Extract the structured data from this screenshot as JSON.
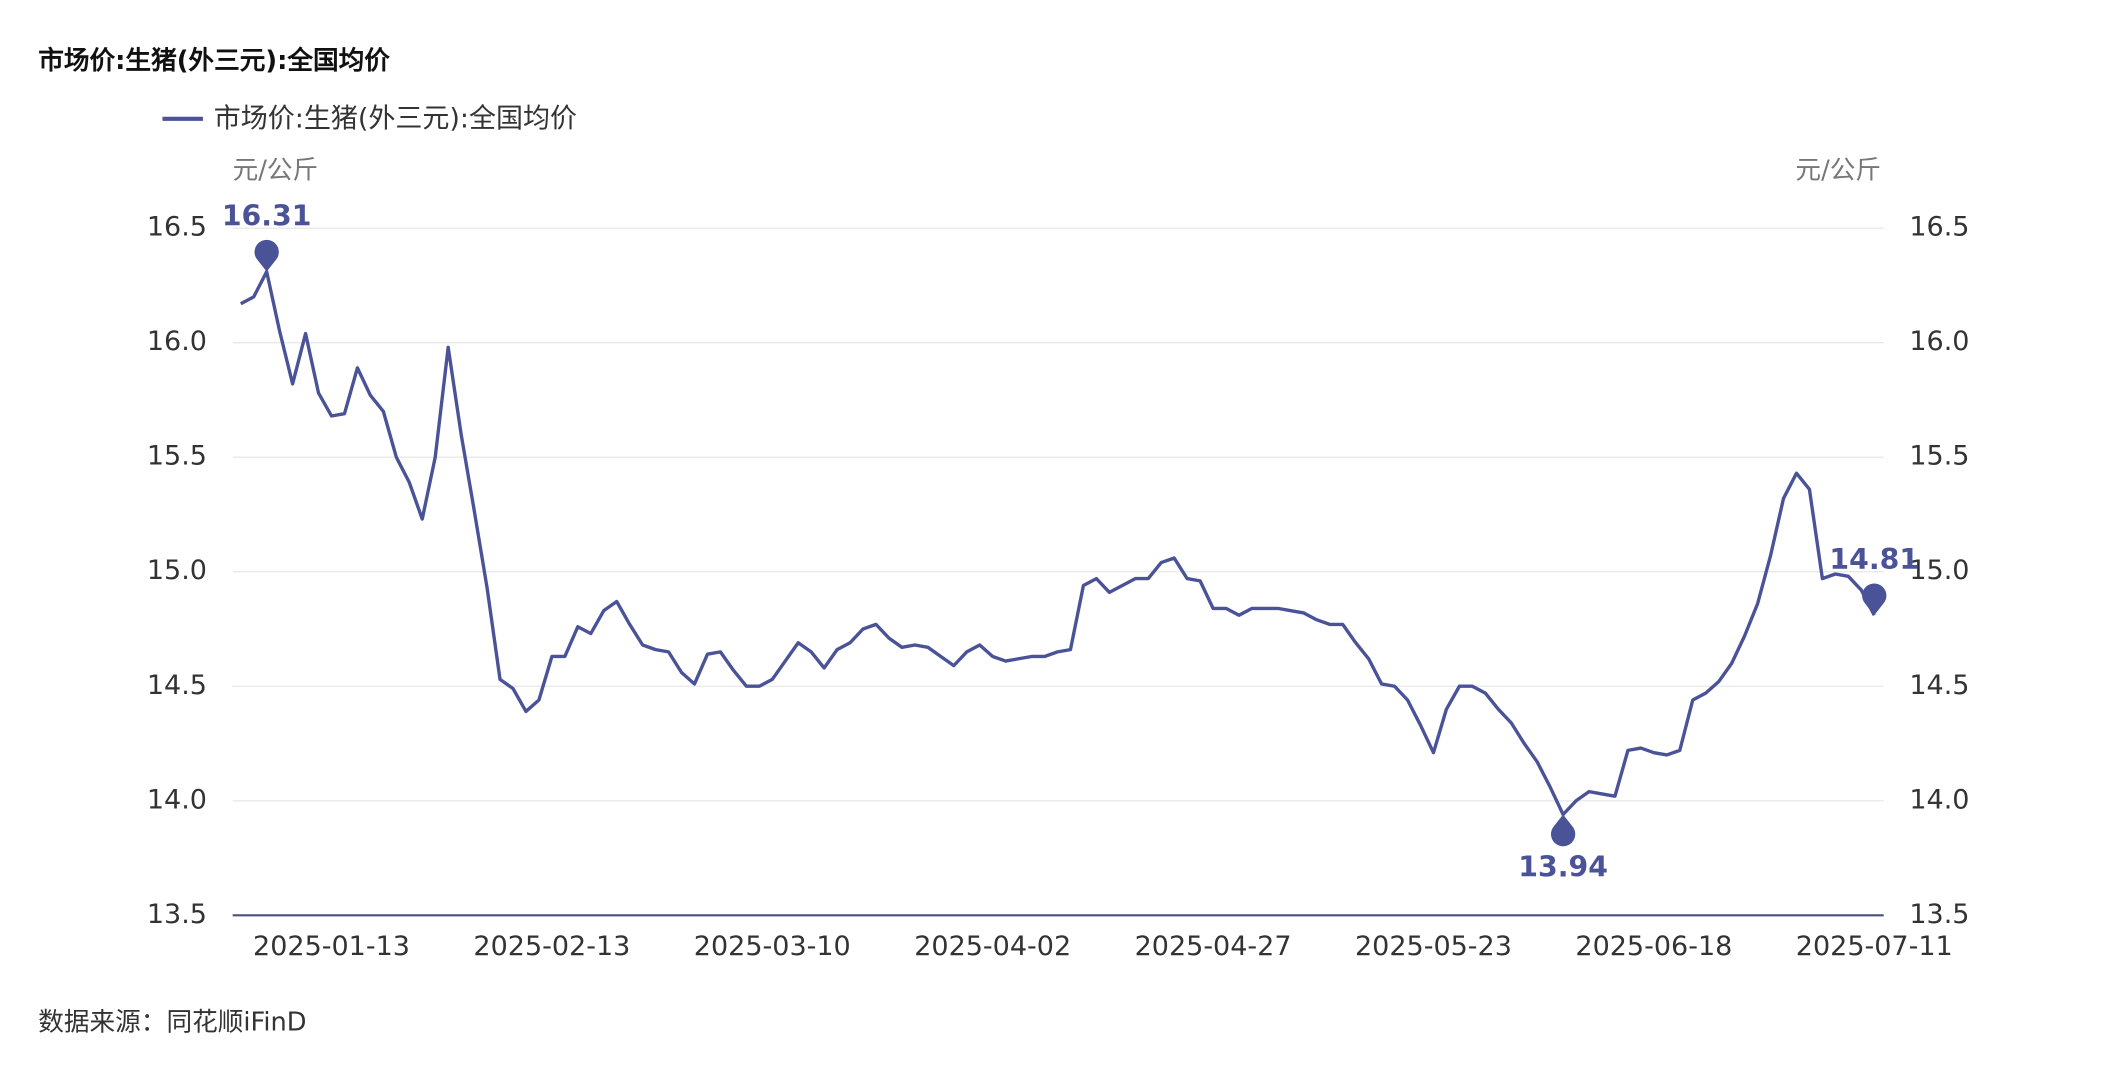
{
  "chart_data": {
    "type": "line",
    "title": "市场价:生猪(外三元):全国均价",
    "source": "数据来源：同花顺iFinD",
    "y_unit": "元/公斤",
    "y2_unit": "元/公斤",
    "categories": [
      null,
      null,
      null,
      null,
      null,
      null,
      null,
      "2025-01-13",
      null,
      null,
      null,
      null,
      null,
      null,
      null,
      null,
      null,
      null,
      null,
      null,
      null,
      null,
      null,
      null,
      "2025-02-13",
      null,
      null,
      null,
      null,
      null,
      null,
      null,
      null,
      null,
      null,
      null,
      null,
      null,
      null,
      null,
      null,
      "2025-03-10",
      null,
      null,
      null,
      null,
      null,
      null,
      null,
      null,
      null,
      null,
      null,
      null,
      null,
      null,
      null,
      null,
      "2025-04-02",
      null,
      null,
      null,
      null,
      null,
      null,
      null,
      null,
      null,
      null,
      null,
      null,
      null,
      null,
      null,
      null,
      "2025-04-27",
      null,
      null,
      null,
      null,
      null,
      null,
      null,
      null,
      null,
      null,
      null,
      null,
      null,
      null,
      null,
      null,
      "2025-05-23",
      null,
      null,
      null,
      null,
      null,
      null,
      null,
      null,
      null,
      null,
      null,
      null,
      null,
      null,
      null,
      null,
      "2025-06-18",
      null,
      null,
      null,
      null,
      null,
      null,
      null,
      null,
      null,
      null,
      null,
      null,
      null,
      null,
      null,
      null,
      "2025-07-11"
    ],
    "series": [
      {
        "name": "市场价:生猪(外三元):全国均价",
        "color": "#4a5298",
        "values": [
          16.17,
          16.2,
          16.31,
          16.05,
          15.82,
          16.04,
          15.78,
          15.68,
          15.69,
          15.89,
          15.77,
          15.7,
          15.5,
          15.39,
          15.23,
          15.5,
          15.98,
          15.6,
          15.27,
          14.93,
          14.53,
          14.49,
          14.39,
          14.44,
          14.63,
          14.63,
          14.76,
          14.73,
          14.83,
          14.87,
          14.77,
          14.68,
          14.66,
          14.65,
          14.56,
          14.51,
          14.64,
          14.65,
          14.57,
          14.5,
          14.5,
          14.53,
          14.61,
          14.69,
          14.65,
          14.58,
          14.66,
          14.69,
          14.75,
          14.77,
          14.71,
          14.67,
          14.68,
          14.67,
          14.63,
          14.59,
          14.65,
          14.68,
          14.63,
          14.61,
          14.62,
          14.63,
          14.63,
          14.65,
          14.66,
          14.94,
          14.97,
          14.91,
          14.94,
          14.97,
          14.97,
          15.04,
          15.06,
          14.97,
          14.96,
          14.84,
          14.84,
          14.81,
          14.84,
          14.84,
          14.84,
          14.83,
          14.82,
          14.79,
          14.77,
          14.77,
          14.69,
          14.62,
          14.51,
          14.5,
          14.44,
          14.33,
          14.21,
          14.4,
          14.5,
          14.5,
          14.47,
          14.4,
          14.34,
          14.25,
          14.17,
          14.06,
          13.94,
          14.0,
          14.04,
          14.03,
          14.02,
          14.22,
          14.23,
          14.21,
          14.2,
          14.22,
          14.44,
          14.47,
          14.52,
          14.6,
          14.72,
          14.86,
          15.07,
          15.32,
          15.43,
          15.36,
          14.97,
          14.99,
          14.98,
          14.92,
          14.81
        ]
      }
    ],
    "ylim": [
      13.5,
      16.5
    ],
    "yticks": [
      13.5,
      {
        "value": 14,
        "label": "14.0"
      },
      14.5,
      {
        "value": 15,
        "label": "15.0"
      },
      15.5,
      {
        "value": 16,
        "label": "16.0"
      },
      16.5
    ],
    "y2lim": [
      13.5,
      16.5
    ],
    "y2ticks": [
      13.5,
      {
        "value": 14,
        "label": "14.0"
      },
      14.5,
      {
        "value": 15,
        "label": "15.0"
      },
      15.5,
      {
        "value": 16,
        "label": "16.0"
      },
      16.5
    ],
    "grid": true
  }
}
